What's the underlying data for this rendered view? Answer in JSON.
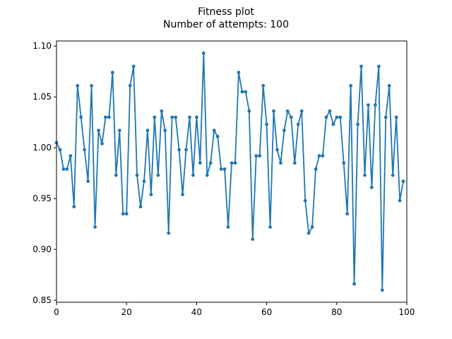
{
  "chart_data": {
    "type": "line",
    "title": "Fitness plot",
    "subtitle": "Number of attempts: 100",
    "xlabel": "",
    "ylabel": "",
    "xlim": [
      0,
      100
    ],
    "ylim": [
      0.848,
      1.105
    ],
    "xticks": [
      0,
      20,
      40,
      60,
      80,
      100
    ],
    "xtick_labels": [
      "0",
      "20",
      "40",
      "60",
      "80",
      "100"
    ],
    "yticks": [
      0.85,
      0.9,
      0.95,
      1.0,
      1.05,
      1.1
    ],
    "ytick_labels": [
      "0.85",
      "0.90",
      "0.95",
      "1.00",
      "1.05",
      "1.10"
    ],
    "grid": false,
    "legend": "none",
    "series": [
      {
        "color": "#1f77b4",
        "marker": "circle",
        "x": [
          0,
          1,
          2,
          3,
          4,
          5,
          6,
          7,
          8,
          9,
          10,
          11,
          12,
          13,
          14,
          15,
          16,
          17,
          18,
          19,
          20,
          21,
          22,
          23,
          24,
          25,
          26,
          27,
          28,
          29,
          30,
          31,
          32,
          33,
          34,
          35,
          36,
          37,
          38,
          39,
          40,
          41,
          42,
          43,
          44,
          45,
          46,
          47,
          48,
          49,
          50,
          51,
          52,
          53,
          54,
          55,
          56,
          57,
          58,
          59,
          60,
          61,
          62,
          63,
          64,
          65,
          66,
          67,
          68,
          69,
          70,
          71,
          72,
          73,
          74,
          75,
          76,
          77,
          78,
          79,
          80,
          81,
          82,
          83,
          84,
          85,
          86,
          87,
          88,
          89,
          90,
          91,
          92,
          93,
          94,
          95,
          96,
          97,
          98,
          99
        ],
        "values": [
          1.005,
          0.998,
          0.979,
          0.979,
          0.992,
          0.942,
          1.061,
          1.03,
          0.998,
          0.967,
          1.061,
          0.922,
          1.017,
          1.004,
          1.03,
          1.03,
          1.074,
          0.973,
          1.017,
          0.935,
          0.935,
          1.061,
          1.08,
          0.973,
          0.942,
          0.967,
          1.017,
          0.954,
          1.03,
          0.973,
          1.036,
          1.017,
          0.916,
          1.03,
          1.03,
          0.998,
          0.954,
          0.998,
          1.03,
          0.973,
          1.03,
          0.985,
          1.093,
          0.973,
          0.985,
          1.017,
          1.011,
          0.979,
          0.979,
          0.922,
          0.985,
          0.985,
          1.074,
          1.055,
          1.055,
          1.036,
          0.91,
          0.992,
          0.992,
          1.061,
          1.023,
          0.922,
          1.036,
          0.998,
          0.985,
          1.017,
          1.036,
          1.03,
          0.985,
          1.023,
          1.036,
          0.948,
          0.916,
          0.922,
          0.979,
          0.992,
          0.992,
          1.03,
          1.036,
          1.023,
          1.03,
          1.03,
          0.985,
          0.935,
          1.061,
          0.866,
          1.023,
          1.08,
          0.973,
          1.042,
          0.961,
          1.042,
          1.08,
          0.86,
          1.03,
          1.061,
          0.973,
          1.03,
          0.948,
          0.967
        ]
      }
    ]
  }
}
